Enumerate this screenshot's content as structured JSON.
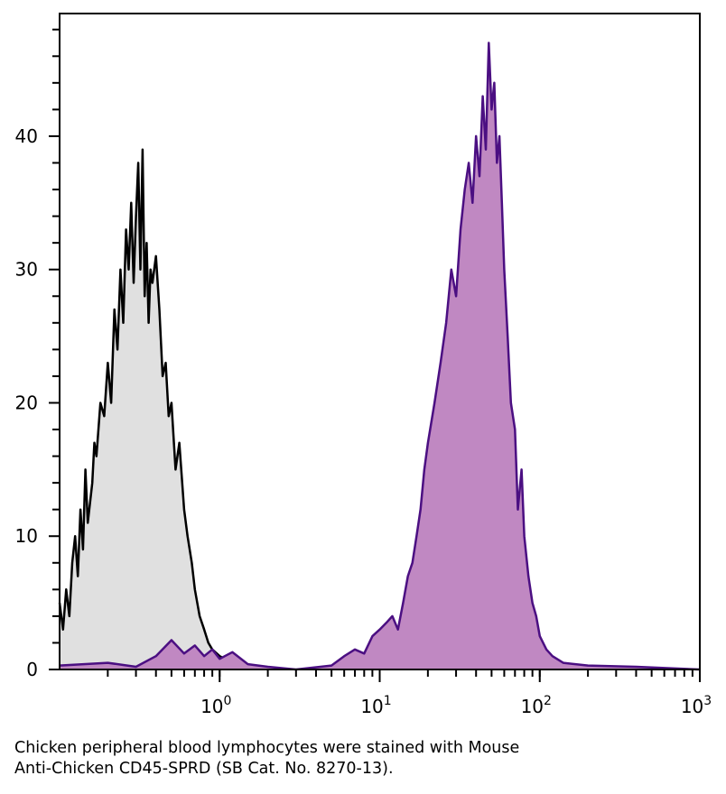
{
  "chart_data": {
    "type": "area",
    "title": "",
    "xlabel": "",
    "ylabel": "",
    "x_scale": "log",
    "xlim": [
      0.1,
      1000
    ],
    "ylim": [
      0,
      49.2
    ],
    "grid": false,
    "y_ticks": [
      0,
      10,
      20,
      30,
      40
    ],
    "y_tick_labels": [
      "0",
      "10",
      "20",
      "30",
      "40"
    ],
    "x_ticks": [
      1,
      10,
      100,
      1000
    ],
    "x_tick_labels": [
      {
        "base": "10",
        "exp": "0"
      },
      {
        "base": "10",
        "exp": "1"
      },
      {
        "base": "10",
        "exp": "2"
      },
      {
        "base": "10",
        "exp": "3"
      }
    ],
    "series": [
      {
        "fill": "#e0e0e0",
        "stroke": "#000000",
        "points": [
          [
            0.1,
            5
          ],
          [
            0.105,
            3
          ],
          [
            0.11,
            6
          ],
          [
            0.115,
            4
          ],
          [
            0.12,
            8
          ],
          [
            0.125,
            10
          ],
          [
            0.13,
            7
          ],
          [
            0.135,
            12
          ],
          [
            0.14,
            9
          ],
          [
            0.145,
            15
          ],
          [
            0.15,
            11
          ],
          [
            0.16,
            14
          ],
          [
            0.165,
            17
          ],
          [
            0.17,
            16
          ],
          [
            0.18,
            20
          ],
          [
            0.19,
            19
          ],
          [
            0.2,
            23
          ],
          [
            0.21,
            20
          ],
          [
            0.22,
            27
          ],
          [
            0.23,
            24
          ],
          [
            0.24,
            30
          ],
          [
            0.25,
            26
          ],
          [
            0.26,
            33
          ],
          [
            0.27,
            30
          ],
          [
            0.28,
            35
          ],
          [
            0.29,
            29
          ],
          [
            0.3,
            34
          ],
          [
            0.31,
            38
          ],
          [
            0.32,
            30
          ],
          [
            0.33,
            39
          ],
          [
            0.34,
            28
          ],
          [
            0.35,
            32
          ],
          [
            0.36,
            26
          ],
          [
            0.37,
            30
          ],
          [
            0.38,
            29
          ],
          [
            0.4,
            31
          ],
          [
            0.42,
            27
          ],
          [
            0.44,
            22
          ],
          [
            0.46,
            23
          ],
          [
            0.48,
            19
          ],
          [
            0.5,
            20
          ],
          [
            0.53,
            15
          ],
          [
            0.56,
            17
          ],
          [
            0.6,
            12
          ],
          [
            0.63,
            10
          ],
          [
            0.67,
            8
          ],
          [
            0.7,
            6
          ],
          [
            0.75,
            4
          ],
          [
            0.8,
            3
          ],
          [
            0.85,
            2
          ],
          [
            0.9,
            1.5
          ],
          [
            1.0,
            1
          ],
          [
            1.2,
            0.5
          ],
          [
            1.5,
            0.3
          ],
          [
            2,
            0
          ]
        ]
      },
      {
        "fill": "#c088c2",
        "stroke": "#4b0f82",
        "points": [
          [
            0.1,
            0.3
          ],
          [
            0.2,
            0.5
          ],
          [
            0.3,
            0.2
          ],
          [
            0.4,
            1
          ],
          [
            0.5,
            2.2
          ],
          [
            0.6,
            1.2
          ],
          [
            0.7,
            1.8
          ],
          [
            0.8,
            1
          ],
          [
            0.9,
            1.5
          ],
          [
            1.0,
            0.8
          ],
          [
            1.2,
            1.3
          ],
          [
            1.5,
            0.4
          ],
          [
            2,
            0.2
          ],
          [
            3,
            0
          ],
          [
            5,
            0.3
          ],
          [
            6,
            1
          ],
          [
            7,
            1.5
          ],
          [
            8,
            1.2
          ],
          [
            9,
            2.5
          ],
          [
            10,
            3
          ],
          [
            11,
            3.5
          ],
          [
            12,
            4
          ],
          [
            13,
            3
          ],
          [
            14,
            5
          ],
          [
            15,
            7
          ],
          [
            16,
            8
          ],
          [
            17,
            10
          ],
          [
            18,
            12
          ],
          [
            19,
            15
          ],
          [
            20,
            17
          ],
          [
            22,
            20
          ],
          [
            24,
            23
          ],
          [
            26,
            26
          ],
          [
            28,
            30
          ],
          [
            30,
            28
          ],
          [
            32,
            33
          ],
          [
            34,
            36
          ],
          [
            36,
            38
          ],
          [
            38,
            35
          ],
          [
            40,
            40
          ],
          [
            42,
            37
          ],
          [
            44,
            43
          ],
          [
            46,
            39
          ],
          [
            48,
            47
          ],
          [
            50,
            42
          ],
          [
            52,
            44
          ],
          [
            54,
            38
          ],
          [
            56,
            40
          ],
          [
            58,
            35
          ],
          [
            60,
            30
          ],
          [
            63,
            25
          ],
          [
            66,
            20
          ],
          [
            70,
            18
          ],
          [
            73,
            12
          ],
          [
            77,
            15
          ],
          [
            80,
            10
          ],
          [
            85,
            7
          ],
          [
            90,
            5
          ],
          [
            95,
            4
          ],
          [
            100,
            2.5
          ],
          [
            110,
            1.5
          ],
          [
            120,
            1
          ],
          [
            140,
            0.5
          ],
          [
            200,
            0.3
          ],
          [
            400,
            0.2
          ],
          [
            1000,
            0
          ]
        ]
      }
    ]
  },
  "caption": {
    "line1": "Chicken peripheral blood lymphocytes were stained with Mouse",
    "line2": "Anti-Chicken CD45-SPRD (SB Cat. No. 8270-13)."
  }
}
